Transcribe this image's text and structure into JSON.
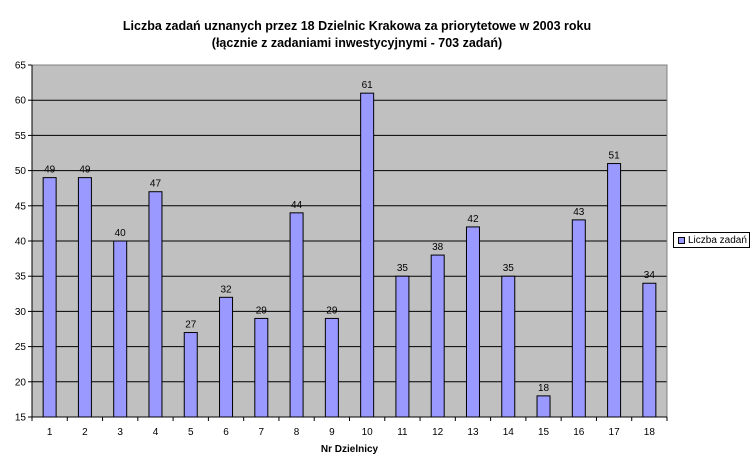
{
  "title_line1": "Liczba zadań uznanych przez 18 Dzielnic Krakowa za priorytetowe w 2003 roku",
  "title_line2": "(łącznie z zadaniami inwestycyjnymi - 703 zadań)",
  "chart_data": {
    "type": "bar",
    "title": "Liczba zadań uznanych przez 18 Dzielnic Krakowa za priorytetowe w 2003 roku",
    "subtitle": "(łącznie z zadaniami inwestycyjnymi - 703 zadań)",
    "xlabel": "Nr Dzielnicy",
    "ylabel": "",
    "categories": [
      "1",
      "2",
      "3",
      "4",
      "5",
      "6",
      "7",
      "8",
      "9",
      "10",
      "11",
      "12",
      "13",
      "14",
      "15",
      "16",
      "17",
      "18"
    ],
    "series": [
      {
        "name": "Liczba zadań",
        "values": [
          49,
          49,
          40,
          47,
          27,
          32,
          29,
          44,
          29,
          61,
          35,
          38,
          42,
          35,
          18,
          43,
          51,
          34
        ]
      }
    ],
    "ylim": [
      15,
      65
    ],
    "yticks": [
      15,
      20,
      25,
      30,
      35,
      40,
      45,
      50,
      55,
      60,
      65
    ],
    "grid": true,
    "legend_position": "right",
    "colors": {
      "bar": "#9999ff",
      "plot_bg": "#c0c0c0"
    }
  }
}
